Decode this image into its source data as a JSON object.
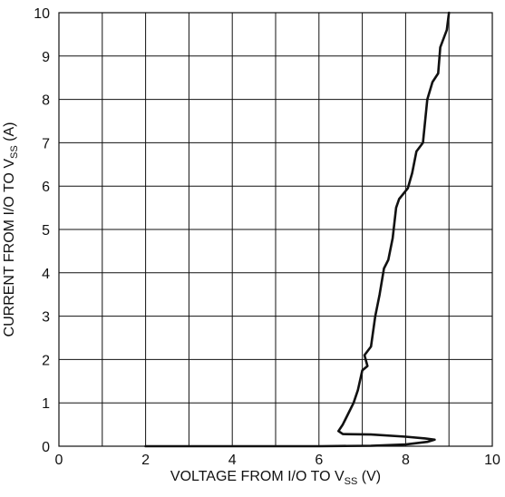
{
  "chart_data": {
    "type": "line",
    "title": "",
    "xlabel_parts": [
      "VOLTAGE FROM I/O TO V",
      "SS",
      " (V)"
    ],
    "ylabel_parts": [
      "CURRENT  FROM I/O TO V",
      "SS",
      " (A)"
    ],
    "xlim": [
      0,
      10
    ],
    "ylim": [
      0,
      10
    ],
    "x_ticks": [
      "0",
      "2",
      "4",
      "6",
      "8",
      "10"
    ],
    "y_ticks": [
      "0",
      "1",
      "2",
      "3",
      "4",
      "5",
      "6",
      "7",
      "8",
      "9",
      "10"
    ],
    "grid": true,
    "series": [
      {
        "color": "#111111",
        "points": [
          [
            2.0,
            0.0
          ],
          [
            4.0,
            0.0
          ],
          [
            6.0,
            0.0
          ],
          [
            7.2,
            0.01
          ],
          [
            8.0,
            0.04
          ],
          [
            8.5,
            0.1
          ],
          [
            8.67,
            0.15
          ],
          [
            8.45,
            0.18
          ],
          [
            8.0,
            0.22
          ],
          [
            7.2,
            0.27
          ],
          [
            6.55,
            0.28
          ],
          [
            6.45,
            0.35
          ],
          [
            6.55,
            0.5
          ],
          [
            6.65,
            0.7
          ],
          [
            6.8,
            1.0
          ],
          [
            6.9,
            1.3
          ],
          [
            7.0,
            1.75
          ],
          [
            7.12,
            1.85
          ],
          [
            7.05,
            2.1
          ],
          [
            7.2,
            2.3
          ],
          [
            7.3,
            3.0
          ],
          [
            7.4,
            3.5
          ],
          [
            7.5,
            4.1
          ],
          [
            7.6,
            4.3
          ],
          [
            7.7,
            4.8
          ],
          [
            7.78,
            5.5
          ],
          [
            7.85,
            5.7
          ],
          [
            8.05,
            5.95
          ],
          [
            8.15,
            6.3
          ],
          [
            8.25,
            6.8
          ],
          [
            8.4,
            7.0
          ],
          [
            8.45,
            7.5
          ],
          [
            8.5,
            8.0
          ],
          [
            8.62,
            8.4
          ],
          [
            8.75,
            8.6
          ],
          [
            8.8,
            9.2
          ],
          [
            8.95,
            9.6
          ],
          [
            9.0,
            10.0
          ]
        ]
      }
    ]
  }
}
